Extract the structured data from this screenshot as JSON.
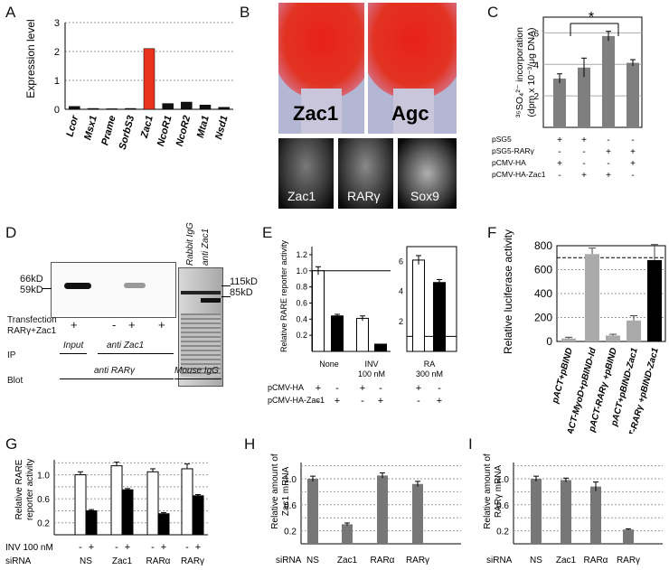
{
  "labels": {
    "A": "A",
    "B": "B",
    "C": "C",
    "D": "D",
    "E": "E",
    "F": "F",
    "G": "G",
    "H": "H",
    "I": "I"
  },
  "panelA": {
    "ylabel": "Expression level",
    "ticks": [
      "0",
      "1",
      "2",
      "3"
    ],
    "chart_data": {
      "type": "bar",
      "categories": [
        "Lcor",
        "Msx1",
        "Prame",
        "SorbS3",
        "Zac1",
        "NcoR1",
        "NcoR2",
        "Mta1",
        "Nsd1"
      ],
      "values": [
        0.1,
        0.03,
        0.02,
        0.03,
        2.1,
        0.2,
        0.25,
        0.15,
        0.07
      ],
      "ylim": [
        0,
        3
      ],
      "highlight_color": "#e8321c",
      "bar_color": "#111111"
    }
  },
  "panelB": {
    "top_left": "Zac1",
    "top_right": "Agc",
    "bottom": [
      "Zac1",
      "RARγ",
      "Sox9"
    ]
  },
  "panelC": {
    "ylabel_line1": "³⁵SO₄²⁻ incorporation",
    "ylabel_line2": "(dpm x 10⁻³/μg DNA)",
    "ticks": [
      "2",
      "4",
      "6"
    ],
    "star": "*",
    "row_labels": [
      "pSG5",
      "pSG5-RARγ",
      "pCMV-HA",
      "pCMV-HA-Zac1"
    ],
    "signs": [
      [
        "+",
        "+",
        "-",
        "-"
      ],
      [
        "-",
        "-",
        "+",
        "+"
      ],
      [
        "+",
        "-",
        "-",
        "+"
      ],
      [
        "-",
        "+",
        "+",
        "-"
      ]
    ],
    "chart_data": {
      "type": "bar",
      "categories": [
        "1",
        "2",
        "3",
        "4"
      ],
      "values": [
        3.1,
        3.8,
        5.8,
        4.1
      ],
      "errors": [
        0.3,
        0.6,
        0.3,
        0.2
      ],
      "ylim": [
        0,
        7
      ]
    }
  },
  "panelD": {
    "mw_left": [
      "66kD",
      "59kD"
    ],
    "mw_right": [
      "115kD",
      "85kD"
    ],
    "lane_labels": [
      "Rabbit IgG",
      "anti Zac1"
    ],
    "transfection": "Transfection",
    "rar_zac": "RARγ+Zac1",
    "signs": [
      "+",
      "-",
      "+",
      "+"
    ],
    "ip": "IP",
    "input": "Input",
    "anti_zac1": "anti Zac1",
    "blot": "Blot",
    "anti_rar": "anti RARγ",
    "mouse_igg": "Mouse IgG"
  },
  "panelE": {
    "ylabel": "Relative RARE reporter activity",
    "ticks_left": [
      "0.2",
      "0.4",
      "0.6",
      "0.8",
      "1.0",
      "1.2"
    ],
    "ticks_right": [
      "2",
      "4",
      "6"
    ],
    "groups": [
      "None",
      "INV\n100 nM",
      "RA\n300 nM"
    ],
    "group_line1": [
      "None",
      "INV",
      "RA"
    ],
    "group_line2": [
      "",
      "100 nM",
      "300 nM"
    ],
    "row_labels": [
      "pCMV-HA",
      "pCMV-HA-Zac1"
    ],
    "signs": [
      [
        "+",
        "-",
        "+",
        "-",
        "+",
        "-"
      ],
      [
        "-",
        "+",
        "-",
        "+",
        "-",
        "+"
      ]
    ],
    "chart_data": {
      "type": "bar",
      "categories": [
        "None-HA",
        "None-Zac1",
        "INV-HA",
        "INV-Zac1",
        "RA-HA",
        "RA-Zac1"
      ],
      "values": [
        1.0,
        0.44,
        0.41,
        0.09,
        6.1,
        4.6
      ],
      "errors": [
        0.05,
        0.02,
        0.03,
        0,
        0.3,
        0.2
      ]
    }
  },
  "panelF": {
    "ylabel": "Relative luciferase activity",
    "ticks": [
      "0",
      "200",
      "400",
      "600",
      "800"
    ],
    "categories": [
      "pACT+pBIND",
      "pACT-MyoD+pBIND-Id",
      "pACT-RARγ +pBIND",
      "pACT+pBIND-Zac1",
      "pACT-RARγ +pBIND-Zac1"
    ],
    "chart_data": {
      "type": "bar",
      "categories": [
        "pACT+pBIND",
        "pACT-MyoD+pBIND-Id",
        "pACT-RARγ +pBIND",
        "pACT+pBIND-Zac1",
        "pACT-RARγ +pBIND-Zac1"
      ],
      "values": [
        25,
        730,
        50,
        175,
        680
      ],
      "errors": [
        10,
        50,
        10,
        40,
        130
      ],
      "ylim": [
        0,
        800
      ]
    }
  },
  "panelG": {
    "ylabel1": "Relative RARE",
    "ylabel2": "reporter activity",
    "ticks": [
      "0.2",
      "0.6",
      "1.0"
    ],
    "inv": "INV 100 nM",
    "sirna": "siRNA",
    "groups": [
      "NS",
      "Zac1",
      "RARα",
      "RARγ"
    ],
    "signs": [
      "-",
      "+",
      "-",
      "+",
      "-",
      "+",
      "-",
      "+"
    ],
    "chart_data": {
      "type": "bar",
      "categories": [
        "NS",
        "Zac1",
        "RARα",
        "RARγ"
      ],
      "series": [
        {
          "values": [
            1.0,
            1.15,
            1.05,
            1.1
          ]
        },
        {
          "values": [
            0.4,
            0.75,
            0.35,
            0.65
          ]
        }
      ],
      "errors": [
        [
          0.05,
          0.06,
          0.05,
          0.08
        ],
        [
          0.02,
          0.02,
          0.02,
          0.02
        ]
      ]
    }
  },
  "panelH": {
    "ylabel1": "Relative amount of",
    "ylabel2": "Zac1 mRNA",
    "ticks": [
      "0.2",
      "0.6",
      "1.0"
    ],
    "sirna": "siRNA",
    "groups": [
      "NS",
      "Zac1",
      "RARα",
      "RARγ"
    ],
    "chart_data": {
      "type": "bar",
      "categories": [
        "NS",
        "Zac1",
        "RARα",
        "RARγ"
      ],
      "values": [
        1.0,
        0.3,
        1.05,
        0.92
      ],
      "errors": [
        0.04,
        0.02,
        0.04,
        0.04
      ]
    }
  },
  "panelI": {
    "ylabel1": "Relative amount of",
    "ylabel2": "RARγ mRNA",
    "ticks": [
      "0.2",
      "0.6",
      "1.0"
    ],
    "sirna": "siRNA",
    "groups": [
      "NS",
      "Zac1",
      "RARα",
      "RARγ"
    ],
    "chart_data": {
      "type": "bar",
      "categories": [
        "NS",
        "Zac1",
        "RARα",
        "RARγ"
      ],
      "values": [
        1.0,
        0.98,
        0.88,
        0.22
      ],
      "errors": [
        0.04,
        0.03,
        0.07,
        0.01
      ]
    }
  }
}
